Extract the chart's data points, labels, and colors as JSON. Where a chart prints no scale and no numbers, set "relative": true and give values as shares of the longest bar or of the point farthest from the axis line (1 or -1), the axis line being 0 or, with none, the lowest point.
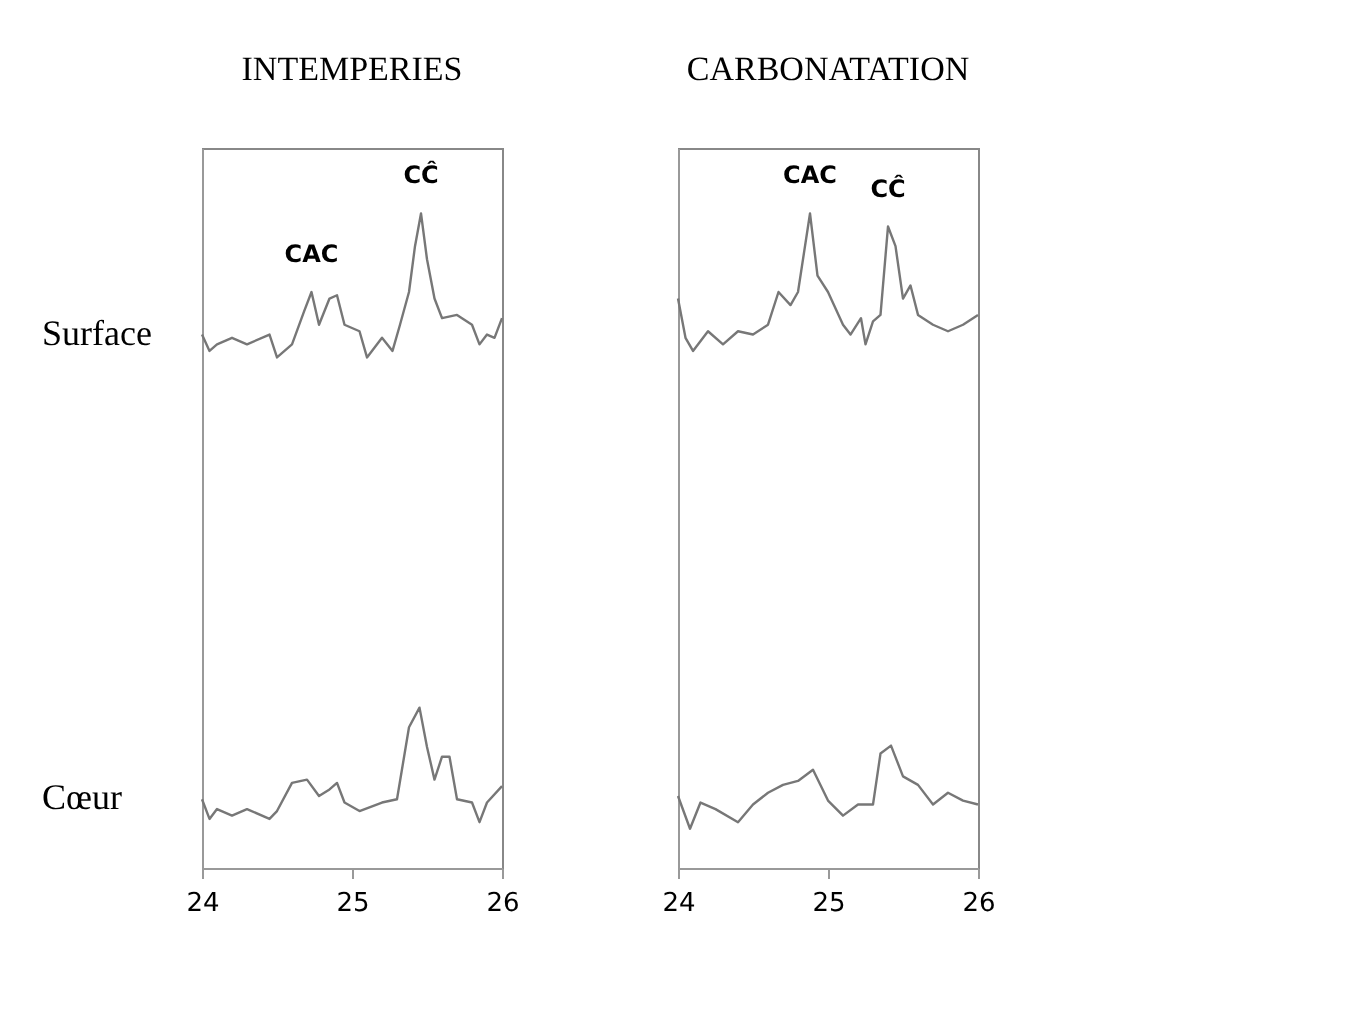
{
  "chart_data": [
    {
      "type": "line",
      "title": "INTEMPERIES",
      "relative": true,
      "xlim": [
        24,
        26
      ],
      "xticks": [
        24,
        25,
        26
      ],
      "series": [
        {
          "name": "Surface",
          "color": "#777777",
          "x": [
            24.0,
            24.05,
            24.1,
            24.2,
            24.3,
            24.45,
            24.5,
            24.6,
            24.68,
            24.73,
            24.78,
            24.85,
            24.9,
            24.95,
            25.05,
            25.1,
            25.2,
            25.27,
            25.32,
            25.38,
            25.42,
            25.46,
            25.5,
            25.55,
            25.6,
            25.7,
            25.8,
            25.85,
            25.9,
            25.95,
            26.0
          ],
          "values": [
            0.815,
            0.79,
            0.8,
            0.81,
            0.8,
            0.815,
            0.78,
            0.8,
            0.85,
            0.88,
            0.83,
            0.87,
            0.875,
            0.83,
            0.82,
            0.78,
            0.81,
            0.79,
            0.83,
            0.88,
            0.95,
            1.0,
            0.93,
            0.87,
            0.84,
            0.845,
            0.83,
            0.8,
            0.815,
            0.81,
            0.84
          ]
        },
        {
          "name": "Cœur",
          "color": "#777777",
          "x": [
            24.0,
            24.05,
            24.1,
            24.2,
            24.3,
            24.45,
            24.5,
            24.6,
            24.7,
            24.78,
            24.85,
            24.9,
            24.95,
            25.05,
            25.2,
            25.3,
            25.38,
            25.45,
            25.5,
            25.55,
            25.6,
            25.65,
            25.7,
            25.8,
            25.85,
            25.9,
            26.0
          ],
          "values": [
            0.105,
            0.075,
            0.09,
            0.08,
            0.09,
            0.075,
            0.087,
            0.13,
            0.135,
            0.11,
            0.12,
            0.13,
            0.1,
            0.087,
            0.1,
            0.105,
            0.215,
            0.245,
            0.185,
            0.135,
            0.17,
            0.17,
            0.105,
            0.1,
            0.07,
            0.1,
            0.125
          ]
        }
      ],
      "annotations": [
        {
          "text": "CAC",
          "x": 24.73,
          "y": 0.88
        },
        {
          "text": "CĈ",
          "x": 25.46,
          "y": 1.0
        }
      ]
    },
    {
      "type": "line",
      "title": "CARBONATATION",
      "relative": true,
      "xlim": [
        24,
        26
      ],
      "xticks": [
        24,
        25,
        26
      ],
      "series": [
        {
          "color": "#777777",
          "x": [
            24.0,
            24.05,
            24.1,
            24.2,
            24.3,
            24.4,
            24.5,
            24.6,
            24.67,
            24.75,
            24.8,
            24.88,
            24.93,
            25.0,
            25.1,
            25.15,
            25.22,
            25.25,
            25.3,
            25.35,
            25.4,
            25.45,
            25.5,
            25.55,
            25.6,
            25.7,
            25.8,
            25.9,
            26.0
          ],
          "values": [
            0.87,
            0.81,
            0.79,
            0.82,
            0.8,
            0.82,
            0.815,
            0.83,
            0.88,
            0.86,
            0.88,
            1.0,
            0.905,
            0.88,
            0.83,
            0.815,
            0.84,
            0.8,
            0.835,
            0.845,
            0.98,
            0.95,
            0.87,
            0.89,
            0.845,
            0.83,
            0.82,
            0.83,
            0.845
          ]
        },
        {
          "color": "#777777",
          "x": [
            24.0,
            24.08,
            24.15,
            24.25,
            24.4,
            24.5,
            24.6,
            24.7,
            24.8,
            24.9,
            25.0,
            25.1,
            25.2,
            25.3,
            25.35,
            25.42,
            25.5,
            25.6,
            25.7,
            25.8,
            25.9,
            26.0
          ],
          "values": [
            0.11,
            0.06,
            0.1,
            0.09,
            0.07,
            0.097,
            0.115,
            0.127,
            0.133,
            0.15,
            0.103,
            0.08,
            0.097,
            0.097,
            0.175,
            0.187,
            0.14,
            0.127,
            0.097,
            0.115,
            0.103,
            0.097
          ]
        }
      ],
      "annotations": [
        {
          "text": "CAC",
          "x": 24.88,
          "y": 1.0
        },
        {
          "text": "CĈ",
          "x": 25.4,
          "y": 0.98
        }
      ]
    }
  ]
}
